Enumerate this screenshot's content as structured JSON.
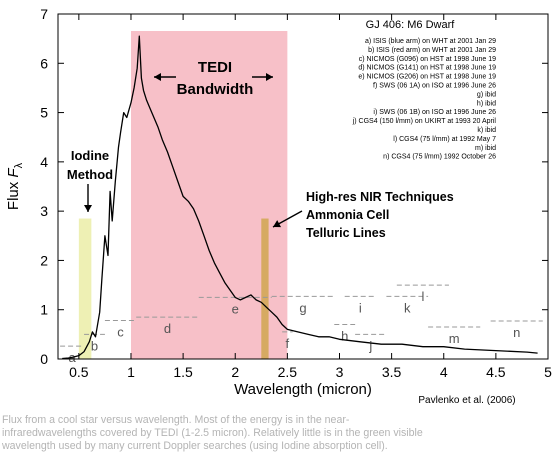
{
  "chart_data": {
    "type": "line",
    "title": "GJ 406: M6 Dwarf",
    "xlabel": "Wavelength (micron)",
    "ylabel_prefix": "Flux ",
    "ylabel_symbol": "F",
    "ylabel_sub": "λ",
    "xlim": [
      0.3,
      5.0
    ],
    "ylim": [
      0,
      7
    ],
    "x_ticks": [
      "0.5",
      "1",
      "1.5",
      "2",
      "2.5",
      "3",
      "3.5",
      "4",
      "4.5",
      "5"
    ],
    "x_tick_values": [
      0.5,
      1,
      1.5,
      2,
      2.5,
      3,
      3.5,
      4,
      4.5,
      5
    ],
    "y_ticks": [
      "0",
      "1",
      "2",
      "3",
      "4",
      "5",
      "6",
      "7"
    ],
    "y_tick_values": [
      0,
      1,
      2,
      3,
      4,
      5,
      6,
      7
    ],
    "grid": false,
    "series": [
      {
        "color": "#000000",
        "x": [
          0.34,
          0.4,
          0.45,
          0.5,
          0.55,
          0.6,
          0.63,
          0.66,
          0.7,
          0.72,
          0.75,
          0.78,
          0.8,
          0.82,
          0.85,
          0.88,
          0.9,
          0.93,
          0.96,
          1.0,
          1.03,
          1.06,
          1.08,
          1.1,
          1.12,
          1.15,
          1.18,
          1.22,
          1.26,
          1.3,
          1.35,
          1.4,
          1.45,
          1.5,
          1.55,
          1.6,
          1.65,
          1.7,
          1.75,
          1.8,
          1.85,
          1.9,
          1.95,
          2.0,
          2.05,
          2.1,
          2.15,
          2.2,
          2.25,
          2.3,
          2.35,
          2.4,
          2.45,
          2.5,
          2.6,
          2.7,
          2.8,
          2.9,
          3.0,
          3.2,
          3.4,
          3.6,
          3.8,
          4.0,
          4.2,
          4.4,
          4.6,
          4.8,
          4.9
        ],
        "y": [
          0.01,
          0.02,
          0.04,
          0.07,
          0.15,
          0.35,
          0.55,
          0.45,
          0.95,
          1.6,
          2.5,
          2.1,
          3.4,
          2.8,
          3.6,
          4.3,
          4.6,
          5.0,
          4.9,
          5.2,
          5.5,
          5.9,
          6.55,
          5.7,
          5.45,
          5.25,
          5.1,
          4.9,
          4.7,
          4.45,
          4.2,
          3.9,
          3.6,
          3.3,
          3.2,
          3.05,
          2.8,
          2.5,
          2.2,
          1.95,
          1.75,
          1.55,
          1.4,
          1.25,
          1.2,
          1.25,
          1.3,
          1.2,
          1.15,
          1.05,
          0.95,
          0.85,
          0.7,
          0.6,
          0.55,
          0.5,
          0.45,
          0.45,
          0.4,
          0.35,
          0.3,
          0.3,
          0.25,
          0.25,
          0.2,
          0.18,
          0.16,
          0.14,
          0.12
        ]
      }
    ],
    "regions": [
      {
        "label_lines": [
          "TEDI",
          "Bandwidth"
        ],
        "x0": 1.0,
        "x1": 2.5,
        "color": "#f7c0c8"
      },
      {
        "label_lines": [
          "Iodine",
          "Method"
        ],
        "x0": 0.5,
        "x1": 0.62,
        "y1": 2.85,
        "color": "#eef0b4"
      },
      {
        "label_lines": [
          "High-res NIR Techniques",
          "Ammonia Cell",
          "Telluric Lines"
        ],
        "x0": 2.25,
        "x1": 2.32,
        "y1": 2.85,
        "color": "#d6aa62"
      }
    ],
    "segments": [
      {
        "label": "a",
        "x0": 0.32,
        "x1": 0.55,
        "y": 0.26
      },
      {
        "label": "b",
        "x0": 0.55,
        "x1": 0.75,
        "y": 0.5
      },
      {
        "label": "c",
        "x0": 0.75,
        "x1": 1.05,
        "y": 0.78
      },
      {
        "label": "d",
        "x0": 1.05,
        "x1": 1.65,
        "y": 0.85
      },
      {
        "label": "e",
        "x0": 1.65,
        "x1": 2.35,
        "y": 1.25
      },
      {
        "label": "f",
        "x0": 2.45,
        "x1": 2.55,
        "y": 0.55
      },
      {
        "label": "g",
        "x0": 2.35,
        "x1": 2.95,
        "y": 1.27
      },
      {
        "label": "h",
        "x0": 2.95,
        "x1": 3.15,
        "y": 0.7
      },
      {
        "label": "i",
        "x0": 3.05,
        "x1": 3.35,
        "y": 1.27
      },
      {
        "label": "j",
        "x0": 3.15,
        "x1": 3.45,
        "y": 0.5
      },
      {
        "label": "k",
        "x0": 3.45,
        "x1": 3.85,
        "y": 1.27
      },
      {
        "label": "l",
        "x0": 3.55,
        "x1": 4.05,
        "y": 1.5
      },
      {
        "label": "m",
        "x0": 3.85,
        "x1": 4.35,
        "y": 0.65
      },
      {
        "label": "n",
        "x0": 4.45,
        "x1": 4.95,
        "y": 0.77
      }
    ],
    "legend_lines": [
      "a) ISIS (blue arm) on WHT at 2001 Jan 29",
      "b) ISIS (red arm) on WHT at 2001 Jan 29",
      "c) NICMOS (G096) on HST at 1998 June 19",
      "d) NICMOS (G141) on HST at 1998 June 19",
      "e) NICMOS (G206) on HST at 1998 June 19",
      "f) SWS (06 1A) on ISO at 1996 June 26",
      "g) ibid",
      "h) ibid",
      "i) SWS (06 1B) on ISO at 1996 June 26",
      "j) CGS4 (150 l/mm) on UKIRT at 1993 20 April",
      "k) ibid",
      "l) CGS4 (75 l/mm) at 1992 May 7",
      "m) ibid",
      "n) CGS4 (75 l/mm)  1992 October 26"
    ],
    "credit": "Pavlenko et al. (2006)"
  },
  "caption_lines": [
    "Flux from a cool star versus wavelength.  Most of the energy is in the near-",
    "infraredwavelengths covered by TEDI (1-2.5 micron).  Relatively little is in the green visible",
    "wavelength used by many current Doppler searches (using Iodine absorption cell)."
  ]
}
